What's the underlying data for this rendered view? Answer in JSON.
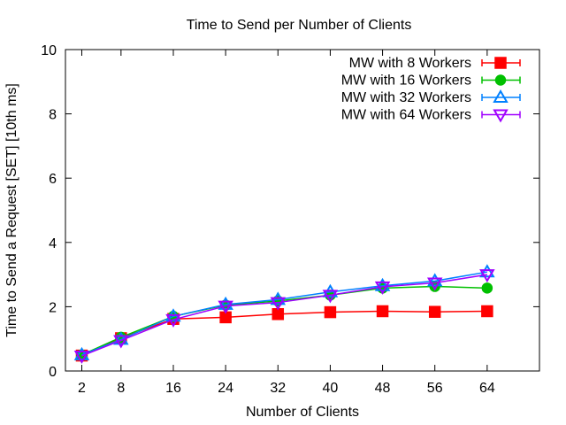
{
  "chart_data": {
    "type": "line",
    "title": "Time to Send per Number of Clients",
    "xlabel": "Number of Clients",
    "ylabel": "Time to Send a Request [SET] [10th ms]",
    "x": [
      2,
      8,
      16,
      24,
      32,
      40,
      48,
      56,
      64
    ],
    "xticks": [
      2,
      8,
      16,
      24,
      32,
      40,
      48,
      56,
      64
    ],
    "xlim": [
      -0.5,
      72
    ],
    "yticks": [
      0,
      2,
      4,
      6,
      8,
      10
    ],
    "ylim": [
      0,
      10
    ],
    "grid": false,
    "legend_position": "top-right",
    "series": [
      {
        "name": "MW with 8 Workers",
        "color": "#ff0000",
        "marker": "square",
        "values": [
          0.48,
          1.02,
          1.62,
          1.67,
          1.77,
          1.83,
          1.86,
          1.84,
          1.86
        ]
      },
      {
        "name": "MW with 16 Workers",
        "color": "#00c000",
        "marker": "circle",
        "values": [
          0.5,
          1.05,
          1.7,
          2.05,
          2.18,
          2.36,
          2.58,
          2.63,
          2.58
        ]
      },
      {
        "name": "MW with 32 Workers",
        "color": "#0080ff",
        "marker": "triangle-up",
        "values": [
          0.5,
          0.98,
          1.7,
          2.07,
          2.22,
          2.46,
          2.65,
          2.8,
          3.08
        ]
      },
      {
        "name": "MW with 64 Workers",
        "color": "#a000ff",
        "marker": "triangle-down",
        "values": [
          0.47,
          0.95,
          1.6,
          2.02,
          2.13,
          2.36,
          2.62,
          2.74,
          3.0
        ]
      }
    ]
  }
}
